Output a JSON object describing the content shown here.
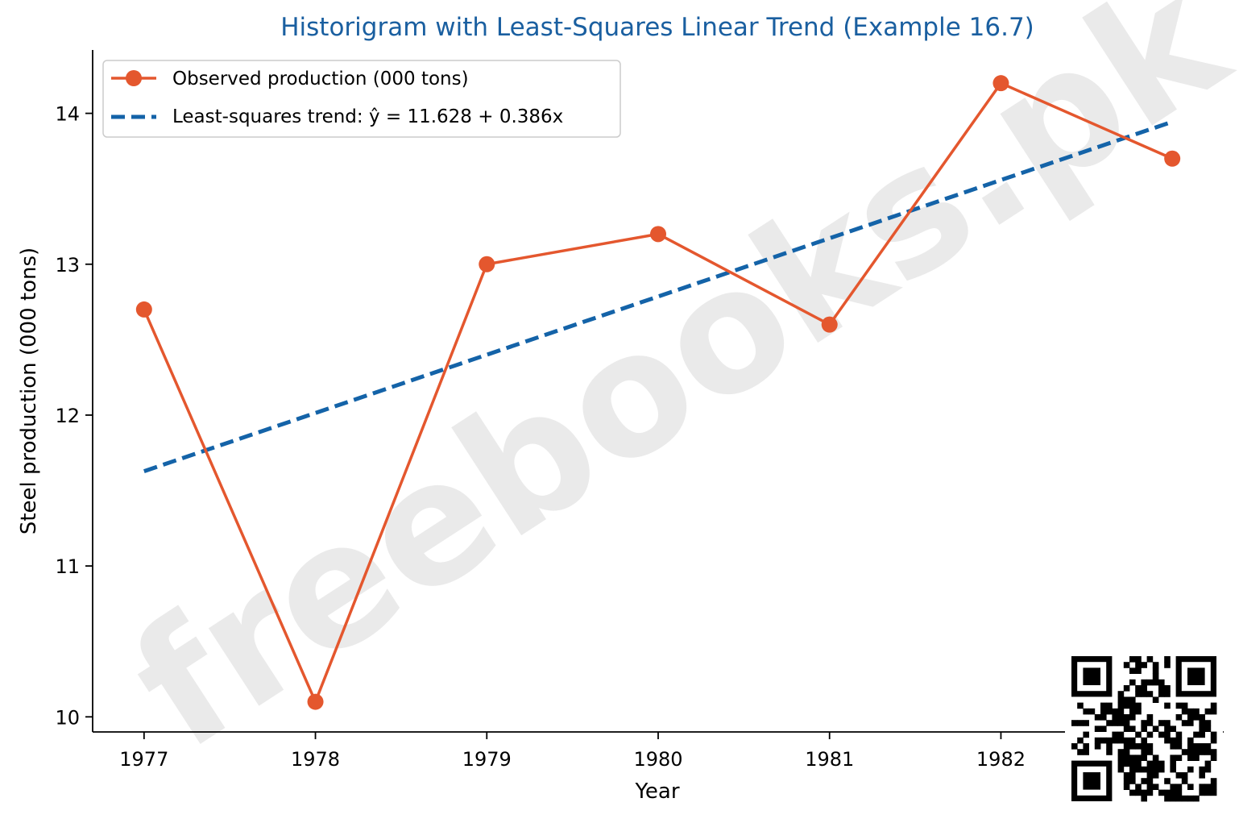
{
  "watermark": "freebooks.pk",
  "colors": {
    "observed": "#e4572e",
    "trend": "#1463a8",
    "title": "#1a5fa0",
    "watermark": "#d9d9d9"
  },
  "chart_data": {
    "type": "line",
    "title": "Historigram with Least-Squares Linear Trend (Example 16.7)",
    "xlabel": "Year",
    "ylabel": "Steel production (000 tons)",
    "x": [
      1977,
      1978,
      1979,
      1980,
      1981,
      1982,
      1983
    ],
    "xticks": [
      "1977",
      "1978",
      "1979",
      "1980",
      "1981",
      "1982"
    ],
    "yticks": [
      "10",
      "11",
      "12",
      "13",
      "14"
    ],
    "xlim": [
      1976.7,
      1983.3
    ],
    "ylim": [
      9.9,
      14.42
    ],
    "grid": false,
    "legend_position": "upper-left",
    "series": [
      {
        "name": "Observed production (000 tons)",
        "style": "solid-line-with-circle-markers",
        "color": "#e4572e",
        "values": [
          12.7,
          10.1,
          13.0,
          13.2,
          12.6,
          14.2,
          13.7
        ]
      },
      {
        "name": "Least-squares trend: ŷ = 11.628 + 0.386x",
        "style": "dashed-line",
        "color": "#1463a8",
        "values": [
          11.628,
          12.014,
          12.4,
          12.786,
          13.172,
          13.558,
          13.944
        ]
      }
    ]
  }
}
